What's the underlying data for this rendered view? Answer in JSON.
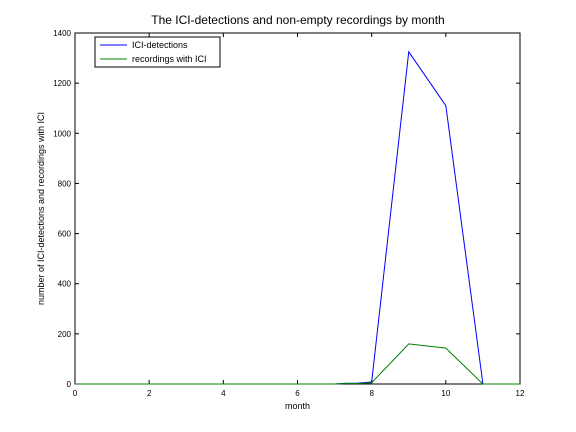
{
  "chart_data": {
    "type": "line",
    "title": "The ICI-detections and non-empty recordings by month",
    "xlabel": "month",
    "ylabel": "number of ICI-detections and recordings with ICI",
    "xlim": [
      0,
      12
    ],
    "ylim": [
      0,
      1400
    ],
    "xticks": [
      0,
      2,
      4,
      6,
      8,
      10,
      12
    ],
    "yticks": [
      0,
      200,
      400,
      600,
      800,
      1000,
      1200,
      1400
    ],
    "grid": false,
    "legend_position": "top-left",
    "series": [
      {
        "name": "ICI-detections",
        "color": "#0000ff",
        "x": [
          0,
          1,
          2,
          3,
          4,
          5,
          6,
          7,
          7.3,
          7.6,
          8,
          9,
          10,
          11,
          12
        ],
        "y": [
          0,
          0,
          0,
          0,
          0,
          0,
          0,
          0,
          3,
          3,
          8,
          1325,
          1110,
          0,
          0
        ]
      },
      {
        "name": "recordings with ICI",
        "color": "#008000",
        "x": [
          0,
          1,
          2,
          3,
          4,
          5,
          6,
          7,
          7.3,
          7.6,
          8,
          9,
          10,
          11,
          12
        ],
        "y": [
          0,
          0,
          0,
          0,
          0,
          0,
          0,
          0,
          2,
          2,
          5,
          160,
          143,
          0,
          0
        ]
      }
    ]
  }
}
